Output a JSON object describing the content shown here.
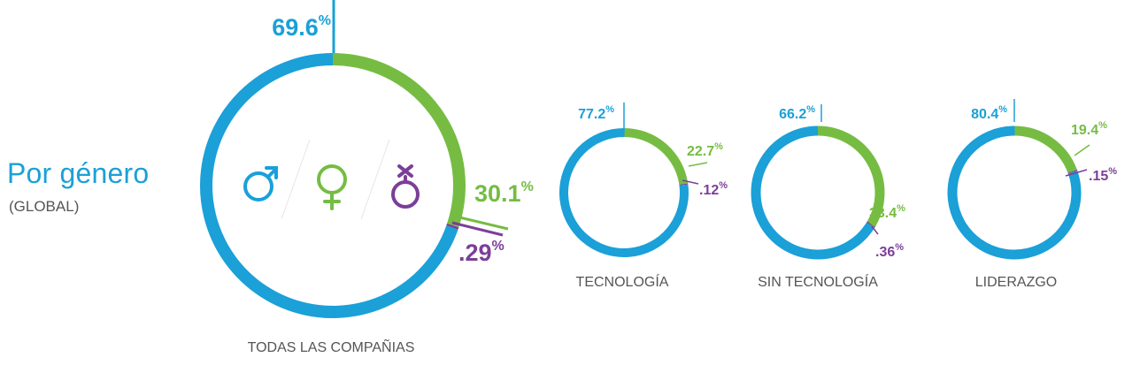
{
  "header": {
    "title": "Por género",
    "subtitle": "(GLOBAL)"
  },
  "colors": {
    "male": "#1ba0d8",
    "female": "#76bc43",
    "other": "#7b3f98",
    "label": "#555555",
    "divider": "#e6e6e6"
  },
  "icons": [
    "male-symbol-icon",
    "female-symbol-icon",
    "transgender-symbol-icon"
  ],
  "chart_data": [
    {
      "type": "pie",
      "title": "TODAS LAS COMPAÑIAS",
      "categories": [
        "male",
        "female",
        "other"
      ],
      "values": [
        69.6,
        30.1,
        0.29
      ],
      "labels": [
        "69.6",
        "30.1",
        ".29"
      ],
      "unit": "%"
    },
    {
      "type": "pie",
      "title": "TECNOLOGÍA",
      "categories": [
        "male",
        "female",
        "other"
      ],
      "values": [
        77.2,
        22.7,
        0.12
      ],
      "labels": [
        "77.2",
        "22.7",
        ".12"
      ],
      "unit": "%"
    },
    {
      "type": "pie",
      "title": "SIN TECNOLOGÍA",
      "categories": [
        "male",
        "female",
        "other"
      ],
      "values": [
        66.2,
        33.4,
        0.36
      ],
      "labels": [
        "66.2",
        "33.4",
        ".36"
      ],
      "unit": "%"
    },
    {
      "type": "pie",
      "title": "LIDERAZGO",
      "categories": [
        "male",
        "female",
        "other"
      ],
      "values": [
        80.4,
        19.4,
        0.15
      ],
      "labels": [
        "80.4",
        "19.4",
        ".15"
      ],
      "unit": "%"
    }
  ]
}
